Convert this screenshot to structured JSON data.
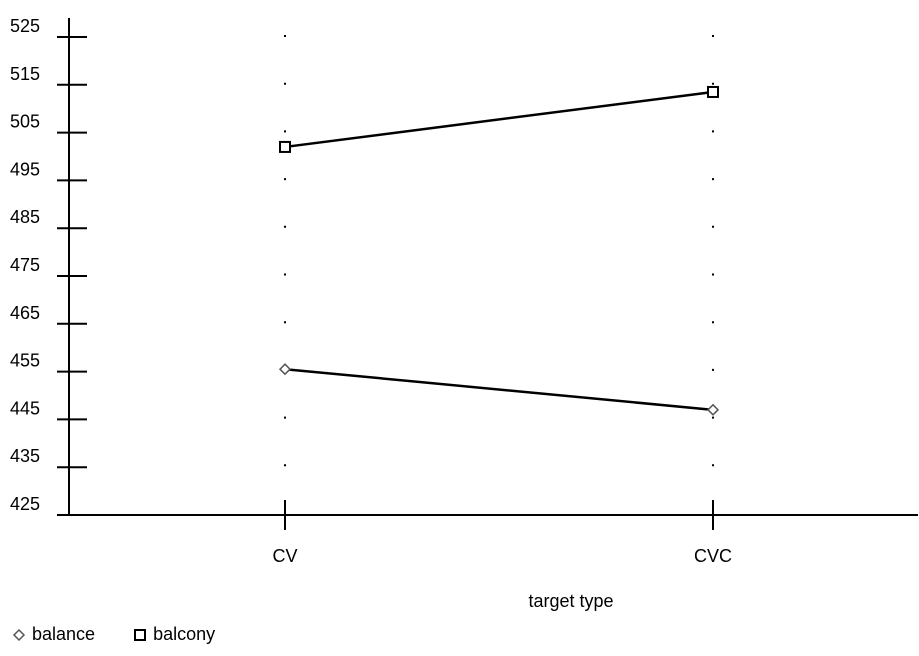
{
  "chart_data": {
    "type": "line",
    "xlabel": "target type",
    "ylabel": "",
    "categories": [
      "CV",
      "CVC"
    ],
    "ylim": [
      425,
      525
    ],
    "yticks": [
      425,
      435,
      445,
      455,
      465,
      475,
      485,
      495,
      505,
      515,
      525
    ],
    "grid": "dotted vertical at categories",
    "legend_position": "bottom-left",
    "series": [
      {
        "name": "balance",
        "marker": "diamond",
        "values": [
          455.5,
          447
        ]
      },
      {
        "name": "balcony",
        "marker": "square",
        "values": [
          502,
          513.5
        ]
      }
    ]
  },
  "colors": {
    "line": "#000000",
    "marker_fill": "#ffffff"
  }
}
